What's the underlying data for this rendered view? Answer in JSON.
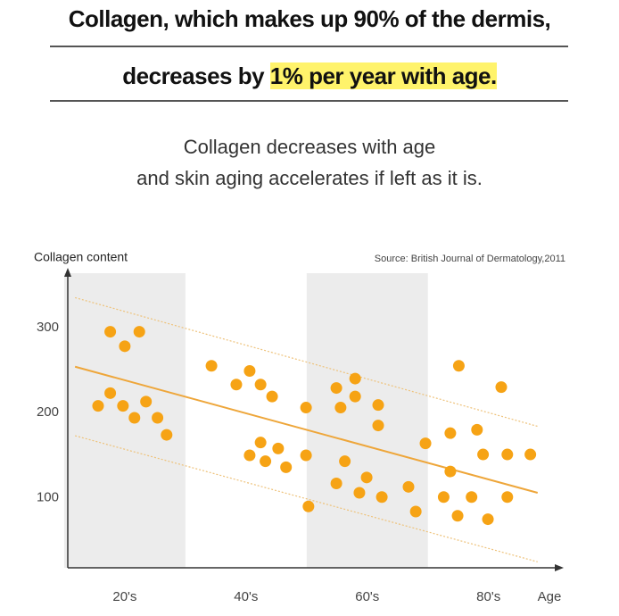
{
  "header": {
    "line1": "Collagen, which makes up 90% of the dermis,",
    "line2": "decreases by ",
    "line2_highlight": "1% per year with age.",
    "subtitle1": "Collagen decreases with age",
    "subtitle2": "and skin aging accelerates if left as it is."
  },
  "chart_data": {
    "type": "scatter",
    "y_label": "Collagen content",
    "x_label": "Age",
    "source": "Source: British Journal of Dermatology,2011",
    "xlim": [
      10.6,
      92.4
    ],
    "ylim": [
      18,
      370
    ],
    "xticks": [
      {
        "value": 20,
        "label": "20's"
      },
      {
        "value": 40,
        "label": "40's"
      },
      {
        "value": 60,
        "label": "60's"
      },
      {
        "value": 80,
        "label": "80's"
      }
    ],
    "yticks": [
      100,
      200,
      300
    ],
    "shaded_ticks": [
      0,
      2
    ],
    "color": "#f6a315",
    "points": {
      "x": [
        17.6,
        20,
        22.4,
        17.6,
        15.6,
        19.7,
        21.6,
        23.5,
        25.4,
        26.9,
        34.3,
        38.4,
        40.6,
        42.4,
        44.3,
        42.4,
        40.6,
        43.2,
        45.3,
        46.6,
        49.9,
        49.9,
        50.3,
        54.9,
        55.6,
        58,
        58,
        61.8,
        61.8,
        56.3,
        54.9,
        58.7,
        59.9,
        62.4,
        66.8,
        68,
        69.6,
        72.6,
        73.7,
        73.7,
        74.9,
        75.1,
        77.2,
        78.1,
        79.1,
        79.9,
        82.1,
        83.1,
        83.1,
        86.9
      ],
      "y": [
        295,
        278,
        295,
        223,
        208,
        208,
        194,
        213,
        194,
        174,
        255,
        233,
        249,
        233,
        219,
        165,
        150,
        143,
        158,
        136,
        206,
        150,
        90,
        229,
        206,
        240,
        219,
        209,
        185,
        143,
        117,
        106,
        124,
        101,
        113,
        84,
        164,
        101,
        176,
        131,
        79,
        255,
        101,
        180,
        151,
        75,
        230,
        151,
        101,
        151
      ]
    },
    "trend_lines": [
      {
        "x": [
          11.8,
          88.1
        ],
        "y": [
          254,
          106
        ],
        "style": "solid",
        "color": "#eea63a"
      },
      {
        "x": [
          11.8,
          88.1
        ],
        "y": [
          335,
          184
        ],
        "style": "dotted",
        "color": "#eec27a"
      },
      {
        "x": [
          11.8,
          88.1
        ],
        "y": [
          173,
          25
        ],
        "style": "dotted",
        "color": "#eec27a"
      }
    ]
  }
}
